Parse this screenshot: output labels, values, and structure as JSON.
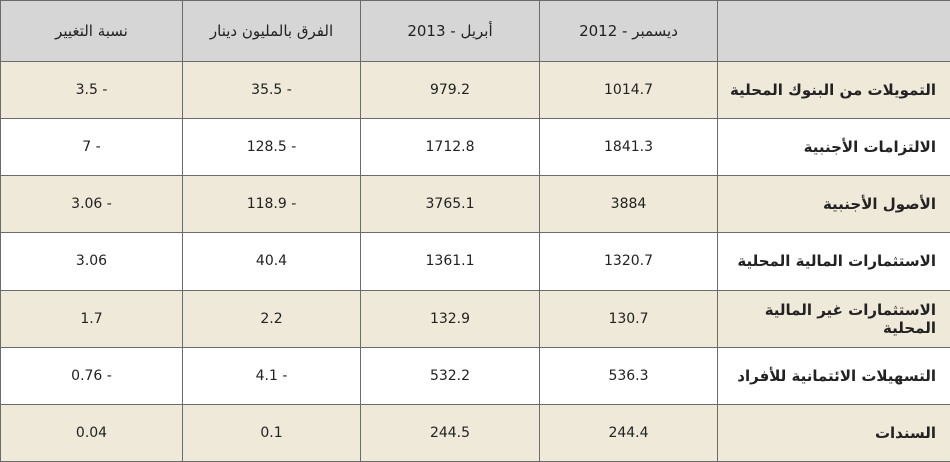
{
  "table": {
    "headers": [
      "ديسمبر - 2012",
      "أبريل - 2013",
      "الفرق بالمليون دينار",
      "نسبة التغيير"
    ],
    "rows": [
      {
        "label": "التمويلات من البنوك المحلية",
        "values": [
          "1014.7",
          "979.2",
          "35.5 -",
          "3.5 -"
        ]
      },
      {
        "label": "الالتزامات الأجنبية",
        "values": [
          "1841.3",
          "1712.8",
          "128.5 -",
          "7 -"
        ]
      },
      {
        "label": "الأصول الأجنبية",
        "values": [
          "3884",
          "3765.1",
          "118.9 -",
          "3.06 -"
        ]
      },
      {
        "label": "الاستثمارات المالية المحلية",
        "values": [
          "1320.7",
          "1361.1",
          "40.4",
          "3.06"
        ]
      },
      {
        "label": "الاستثمارات غير المالية المحلية",
        "values": [
          "130.7",
          "132.9",
          "2.2",
          "1.7"
        ]
      },
      {
        "label": "التسهيلات الائتمانية للأفراد",
        "values": [
          "536.3",
          "532.2",
          "4.1 -",
          "0.76 -"
        ]
      },
      {
        "label": "السندات",
        "values": [
          "244.4",
          "244.5",
          "0.1",
          "0.04"
        ]
      }
    ]
  }
}
